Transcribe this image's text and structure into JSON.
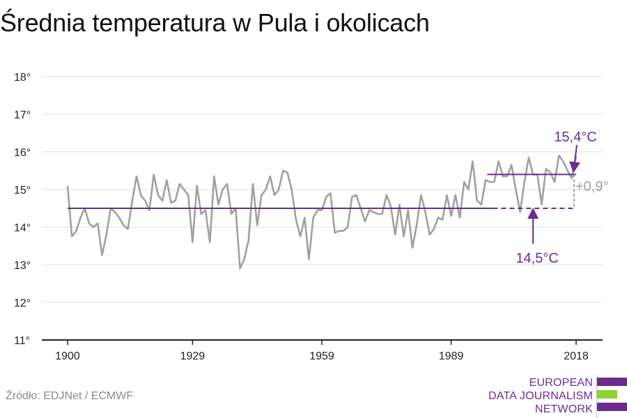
{
  "title": "Średnia temperatura w Pula i okolicach",
  "source": "Źródło: EDJNet / ECMWF",
  "logo": {
    "line1": "EUROPEAN",
    "line2": "DATA JOURNALISM",
    "line3": "NETWORK",
    "colors": [
      "#6b2c91",
      "#8fd12f",
      "#6b2c91"
    ]
  },
  "colors": {
    "series": "#a0a0a0",
    "accent": "#6b2c91",
    "grid": "#dddddd",
    "axis": "#222222",
    "delta": "#a0a0a0"
  },
  "chart_data": {
    "type": "line",
    "title": "Średnia temperatura w Pula i okolicach",
    "xlabel": "",
    "ylabel": "",
    "xlim": [
      1900,
      2018
    ],
    "ylim": [
      11,
      18
    ],
    "x_ticks": [
      1900,
      1929,
      1959,
      1989,
      2018
    ],
    "y_ticks": [
      11,
      12,
      13,
      14,
      15,
      16,
      17,
      18
    ],
    "y_tick_labels": [
      "11°",
      "12°",
      "13°",
      "14°",
      "15°",
      "16°",
      "17°",
      "18°"
    ],
    "grid": true,
    "series": [
      {
        "x": [
          1900,
          1901,
          1902,
          1903,
          1904,
          1905,
          1906,
          1907,
          1908,
          1909,
          1910,
          1911,
          1912,
          1913,
          1914,
          1915,
          1916,
          1917,
          1918,
          1919,
          1920,
          1921,
          1922,
          1923,
          1924,
          1925,
          1926,
          1927,
          1928,
          1929,
          1930,
          1931,
          1932,
          1933,
          1934,
          1935,
          1936,
          1937,
          1938,
          1939,
          1940,
          1941,
          1942,
          1943,
          1944,
          1945,
          1946,
          1947,
          1948,
          1949,
          1950,
          1951,
          1952,
          1953,
          1954,
          1955,
          1956,
          1957,
          1958,
          1959,
          1960,
          1961,
          1962,
          1963,
          1964,
          1965,
          1966,
          1967,
          1968,
          1969,
          1970,
          1971,
          1972,
          1973,
          1974,
          1975,
          1976,
          1977,
          1978,
          1979,
          1980,
          1981,
          1982,
          1983,
          1984,
          1985,
          1986,
          1987,
          1988,
          1989,
          1990,
          1991,
          1992,
          1993,
          1994,
          1995,
          1996,
          1997,
          1998,
          1999,
          2000,
          2001,
          2002,
          2003,
          2004,
          2005,
          2006,
          2007,
          2008,
          2009,
          2010,
          2011,
          2012,
          2013,
          2014,
          2015,
          2016,
          2017,
          2018
        ],
        "values": [
          15.1,
          13.75,
          13.9,
          14.25,
          14.5,
          14.1,
          14.0,
          14.1,
          13.25,
          13.8,
          14.5,
          14.4,
          14.25,
          14.05,
          13.95,
          14.7,
          15.35,
          14.85,
          14.7,
          14.45,
          15.4,
          14.85,
          14.7,
          15.25,
          14.65,
          14.7,
          15.15,
          15.0,
          14.85,
          13.6,
          15.1,
          14.35,
          14.45,
          13.6,
          15.35,
          14.6,
          15.0,
          15.15,
          14.35,
          14.5,
          12.9,
          13.15,
          13.65,
          15.15,
          14.05,
          14.85,
          15.0,
          15.35,
          14.85,
          15.0,
          15.5,
          15.45,
          15.0,
          14.2,
          13.75,
          14.25,
          13.15,
          14.25,
          14.45,
          14.45,
          14.8,
          14.9,
          13.85,
          13.9,
          13.9,
          14.0,
          14.8,
          14.85,
          14.5,
          14.15,
          14.45,
          14.4,
          14.35,
          14.35,
          14.85,
          14.55,
          13.8,
          14.6,
          13.75,
          14.45,
          13.45,
          14.05,
          14.85,
          14.4,
          13.8,
          13.95,
          14.25,
          14.2,
          14.85,
          14.3,
          14.85,
          14.25,
          15.2,
          15.0,
          15.75,
          14.7,
          14.6,
          15.25,
          15.2,
          15.2,
          15.75,
          15.35,
          15.35,
          15.65,
          15.0,
          14.4,
          15.2,
          15.85,
          15.4,
          15.4,
          14.6,
          15.55,
          15.45,
          15.2,
          15.9,
          15.75,
          15.5,
          15.3,
          15.9
        ]
      }
    ],
    "reference_lines": [
      {
        "label": "14,5°C",
        "value": 14.5,
        "from": 1900,
        "to": 2018,
        "dashed_from": 1998
      },
      {
        "label": "15,4°C",
        "value": 15.4,
        "from": 1998,
        "to": 2018
      }
    ],
    "delta_label": "+0,9°"
  }
}
